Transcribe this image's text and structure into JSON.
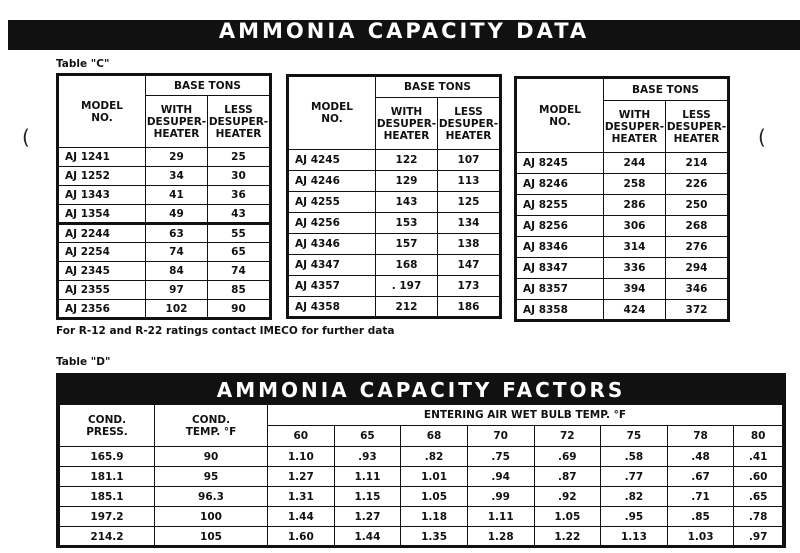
{
  "header": {
    "title": "AMMONIA CAPACITY DATA"
  },
  "table_c": {
    "label": "Table \"C\"",
    "headers": {
      "model": "MODEL",
      "no": "NO.",
      "base": "BASE TONS",
      "with": [
        "WITH",
        "DESUPER-",
        "HEATER"
      ],
      "less": [
        "LESS",
        "DESUPER-",
        "HEATER"
      ]
    },
    "groups": [
      {
        "rows": [
          {
            "model": "AJ 1241",
            "with": "29",
            "less": "25"
          },
          {
            "model": "AJ 1252",
            "with": "34",
            "less": "30"
          },
          {
            "model": "AJ 1343",
            "with": "41",
            "less": "36"
          },
          {
            "model": "AJ 1354",
            "with": "49",
            "less": "43"
          },
          {
            "model": "AJ 2244",
            "with": "63",
            "less": "55"
          },
          {
            "model": "AJ 2254",
            "with": "74",
            "less": "65"
          },
          {
            "model": "AJ 2345",
            "with": "84",
            "less": "74"
          },
          {
            "model": "AJ 2355",
            "with": "97",
            "less": "85"
          },
          {
            "model": "AJ 2356",
            "with": "102",
            "less": "90"
          }
        ]
      },
      {
        "rows": [
          {
            "model": "AJ 4245",
            "with": "122",
            "less": "107"
          },
          {
            "model": "AJ 4246",
            "with": "129",
            "less": "113"
          },
          {
            "model": "AJ 4255",
            "with": "143",
            "less": "125"
          },
          {
            "model": "AJ 4256",
            "with": "153",
            "less": "134"
          },
          {
            "model": "AJ 4346",
            "with": "157",
            "less": "138"
          },
          {
            "model": "AJ 4347",
            "with": "168",
            "less": "147"
          },
          {
            "model": "AJ 4357",
            "with": ". 197",
            "less": "173"
          },
          {
            "model": "AJ 4358",
            "with": "212",
            "less": "186"
          }
        ]
      },
      {
        "rows": [
          {
            "model": "AJ 8245",
            "with": "244",
            "less": "214"
          },
          {
            "model": "AJ 8246",
            "with": "258",
            "less": "226"
          },
          {
            "model": "AJ 8255",
            "with": "286",
            "less": "250"
          },
          {
            "model": "AJ 8256",
            "with": "306",
            "less": "268"
          },
          {
            "model": "AJ 8346",
            "with": "314",
            "less": "276"
          },
          {
            "model": "AJ 8347",
            "with": "336",
            "less": "294"
          },
          {
            "model": "AJ 8357",
            "with": "394",
            "less": "346"
          },
          {
            "model": "AJ 8358",
            "with": "424",
            "less": "372"
          }
        ]
      }
    ],
    "note": "For R-12 and R-22 ratings contact IMECO for further data"
  },
  "table_d": {
    "label": "Table \"D\"",
    "title": "AMMONIA CAPACITY FACTORS",
    "headers": {
      "cond_press": [
        "COND.",
        "PRESS."
      ],
      "cond_temp": [
        "COND.",
        "TEMP. °F"
      ],
      "entering": "ENTERING AIR WET BULB TEMP. °F"
    },
    "temps": [
      "60",
      "65",
      "68",
      "70",
      "72",
      "75",
      "78",
      "80"
    ],
    "rows": [
      {
        "press": "165.9",
        "temp": "90",
        "factors": [
          "1.10",
          ".93",
          ".82",
          ".75",
          ".69",
          ".58",
          ".48",
          ".41"
        ]
      },
      {
        "press": "181.1",
        "temp": "95",
        "factors": [
          "1.27",
          "1.11",
          "1.01",
          ".94",
          ".87",
          ".77",
          ".67",
          ".60"
        ]
      },
      {
        "press": "185.1",
        "temp": "96.3",
        "factors": [
          "1.31",
          "1.15",
          "1.05",
          ".99",
          ".92",
          ".82",
          ".71",
          ".65"
        ]
      },
      {
        "press": "197.2",
        "temp": "100",
        "factors": [
          "1.44",
          "1.27",
          "1.18",
          "1.11",
          "1.05",
          ".95",
          ".85",
          ".78"
        ]
      },
      {
        "press": "214.2",
        "temp": "105",
        "factors": [
          "1.60",
          "1.44",
          "1.35",
          "1.28",
          "1.22",
          "1.13",
          "1.03",
          ".97"
        ]
      }
    ]
  }
}
